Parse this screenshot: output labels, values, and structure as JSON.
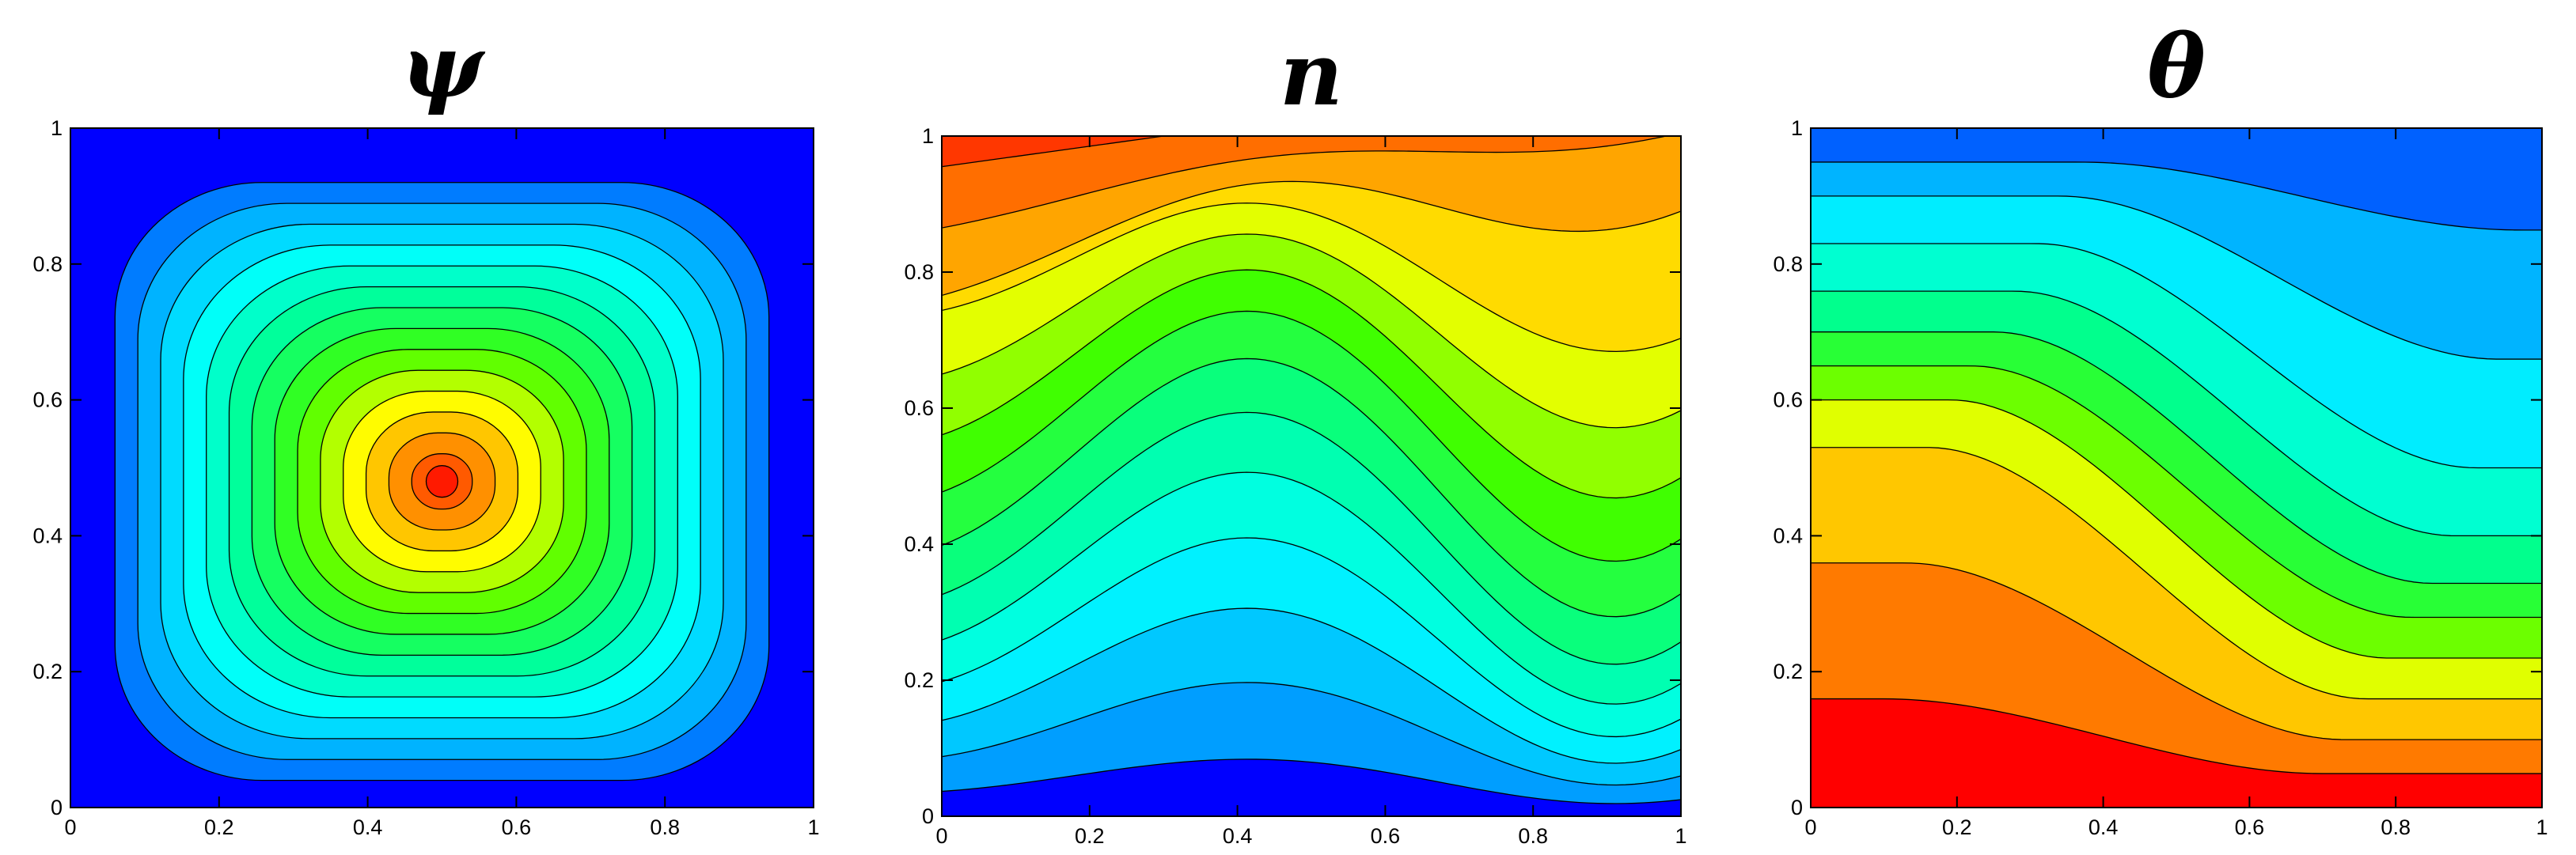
{
  "chart_data": [
    {
      "type": "contour",
      "title": "ψ",
      "xlim": [
        0,
        1
      ],
      "ylim": [
        0,
        1
      ],
      "xticks": [
        0,
        0.2,
        0.4,
        0.6,
        0.8,
        1
      ],
      "yticks": [
        0,
        0.2,
        0.4,
        0.6,
        0.8,
        1
      ]
    },
    {
      "type": "contour",
      "title": "n",
      "xlim": [
        0,
        1
      ],
      "ylim": [
        0,
        1
      ],
      "xticks": [
        0,
        0.2,
        0.4,
        0.6,
        0.8,
        1
      ],
      "yticks": [
        0,
        0.2,
        0.4,
        0.6,
        0.8,
        1
      ]
    },
    {
      "type": "contour",
      "title": "θ",
      "xlim": [
        0,
        1
      ],
      "ylim": [
        0,
        1
      ],
      "xticks": [
        0,
        0.2,
        0.4,
        0.6,
        0.8,
        1
      ],
      "yticks": [
        0,
        0.2,
        0.4,
        0.6,
        0.8,
        1
      ]
    }
  ]
}
